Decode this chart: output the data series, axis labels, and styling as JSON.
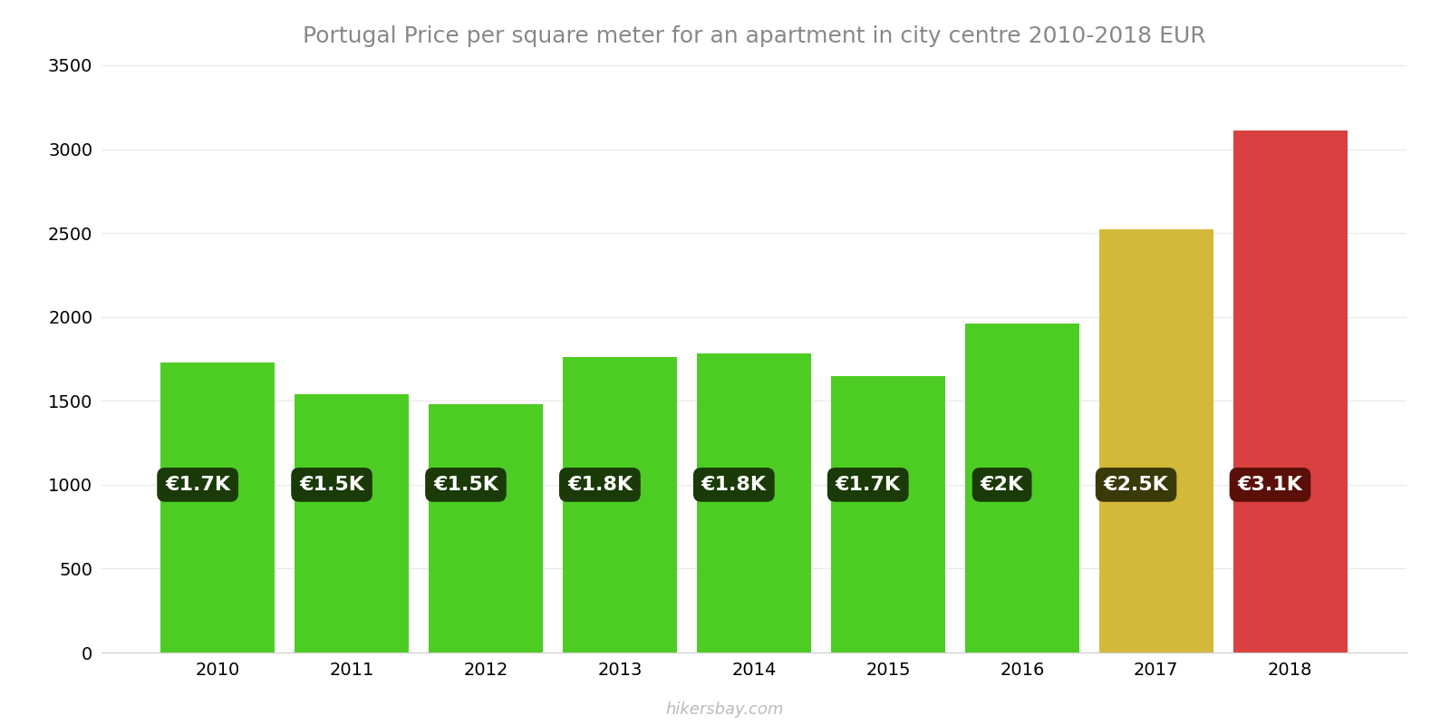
{
  "title": "Portugal Price per square meter for an apartment in city centre 2010-2018 EUR",
  "years": [
    2010,
    2011,
    2012,
    2013,
    2014,
    2015,
    2016,
    2017,
    2018
  ],
  "values": [
    1730,
    1540,
    1480,
    1760,
    1780,
    1650,
    1960,
    2520,
    3110
  ],
  "bar_colors": [
    "#4dcd23",
    "#4dcd23",
    "#4dcd23",
    "#4dcd23",
    "#4dcd23",
    "#4dcd23",
    "#4dcd23",
    "#d4b83a",
    "#d94040"
  ],
  "labels": [
    "€1.7K",
    "€1.5K",
    "€1.5K",
    "€1.8K",
    "€1.8K",
    "€1.7K",
    "€2K",
    "€2.5K",
    "€3.1K"
  ],
  "label_box_colors": [
    "#1a3a08",
    "#1a3a08",
    "#1a3a08",
    "#1a3a08",
    "#1a3a08",
    "#1a3a08",
    "#1a3a08",
    "#3a3a08",
    "#5a1008"
  ],
  "ylim": [
    0,
    3500
  ],
  "yticks": [
    0,
    500,
    1000,
    1500,
    2000,
    2500,
    3000,
    3500
  ],
  "watermark": "hikersbay.com",
  "background_color": "#ffffff",
  "bar_width": 0.85,
  "label_fontsize": 16,
  "title_fontsize": 18,
  "title_color": "#888888",
  "tick_fontsize": 14
}
